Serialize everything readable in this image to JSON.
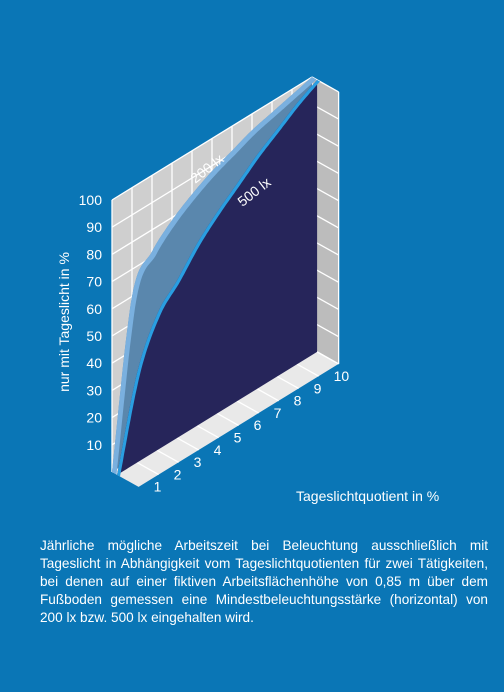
{
  "colors": {
    "background": "#0a76b6",
    "grid_line": "#ffffff",
    "back_wall": "#cfcfcf",
    "side_wall": "#bcbcbc",
    "floor": "#e9e9e9",
    "series_200_front": "#7ab0df",
    "series_200_side": "#5a87ad",
    "series_500_front": "#2a9ee1",
    "series_500_side": "#26255a"
  },
  "chart_data": {
    "type": "area",
    "style": "3d",
    "ylabel": "nur mit Tageslicht in %",
    "xlabel": "Tageslichtquotient in %",
    "y_ticks": [
      "10",
      "20",
      "30",
      "40",
      "50",
      "60",
      "70",
      "80",
      "90",
      "100"
    ],
    "x_ticks": [
      "1",
      "2",
      "3",
      "4",
      "5",
      "6",
      "7",
      "8",
      "9",
      "10"
    ],
    "xlim": [
      0,
      10
    ],
    "ylim": [
      0,
      100
    ],
    "grid": true,
    "legend": "none",
    "series": [
      {
        "name": "200 lx",
        "x": [
          0,
          1,
          2,
          3,
          4,
          5,
          6,
          7,
          8,
          9,
          10
        ],
        "values": [
          0,
          60,
          72,
          79,
          84,
          88,
          91,
          94,
          96,
          98,
          100
        ]
      },
      {
        "name": "500 lx",
        "x": [
          0,
          1,
          2,
          3,
          4,
          5,
          6,
          7,
          8,
          9,
          10
        ],
        "values": [
          0,
          33,
          50,
          58,
          67,
          74,
          80,
          86,
          91,
          96,
          100
        ]
      }
    ]
  },
  "caption": "Jährliche mögliche Arbeitszeit bei Beleuchtung ausschließlich mit Tageslicht in Abhängigkeit vom Tageslichtquotienten für zwei Tätigkeiten, bei denen auf einer fiktiven Arbeitsflächenhöhe von 0,85 m über dem Fußboden gemessen eine Mindestbeleuchtungsstärke (horizontal) von 200 lx bzw. 500 lx eingehalten wird."
}
